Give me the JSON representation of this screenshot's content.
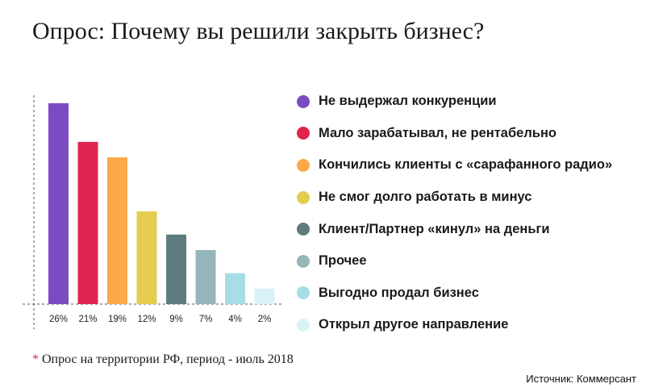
{
  "title": "Опрос: Почему вы решили закрыть бизнес?",
  "chart_data": {
    "type": "bar",
    "title": "Опрос: Почему вы решили закрыть бизнес?",
    "categories": [
      "Не выдержал конкуренции",
      "Мало зарабатывал, не рентабельно",
      "Кончились клиенты с «сарафанного радио»",
      "Не смог долго работать в минус",
      "Клиент/Партнер «кинул» на деньги",
      "Прочее",
      "Выгодно продал бизнес",
      "Открыл другое направление"
    ],
    "values": [
      26,
      21,
      19,
      12,
      9,
      7,
      4,
      2
    ],
    "value_labels": [
      "26%",
      "21%",
      "19%",
      "12%",
      "9%",
      "7%",
      "4%",
      "2%"
    ],
    "colors": [
      "#7b4bc2",
      "#e0244f",
      "#fba94a",
      "#e3cc50",
      "#5e7c80",
      "#97b6bb",
      "#a6dde6",
      "#d9f2f8"
    ],
    "unit": "%",
    "ylim": [
      0,
      26
    ],
    "legend_position": "right",
    "grid": false
  },
  "footnote": {
    "marker": "*",
    "text": " Опрос на территории РФ, период - июль 2018"
  },
  "source": "Источник: Коммерсант"
}
